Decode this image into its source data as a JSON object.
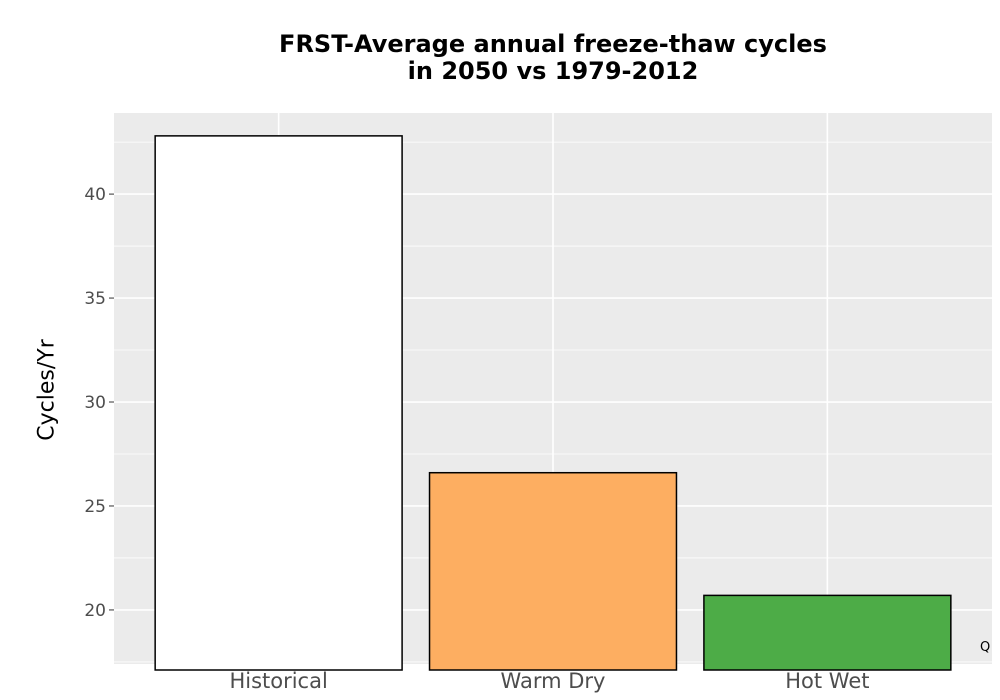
{
  "chart_data": {
    "type": "bar",
    "title_lines": [
      "FRST-Average annual freeze-thaw cycles",
      "in 2050 vs 1979-2012"
    ],
    "xlabel": "",
    "ylabel": "Cycles/Yr",
    "categories": [
      "Historical",
      "Warm Dry",
      "Hot Wet"
    ],
    "values": [
      42.8,
      26.6,
      20.7
    ],
    "colors": [
      "#ffffff",
      "#fdae61",
      "#4dac47"
    ],
    "ylim": [
      17.4,
      43.9
    ],
    "yticks": [
      20,
      25,
      30,
      35,
      40
    ],
    "grid": true,
    "legend": "none"
  },
  "corner_note": "Q",
  "colors": {
    "panel_bg": "#ebebeb",
    "grid_major": "#ffffff",
    "bar_outline": "#000000"
  }
}
